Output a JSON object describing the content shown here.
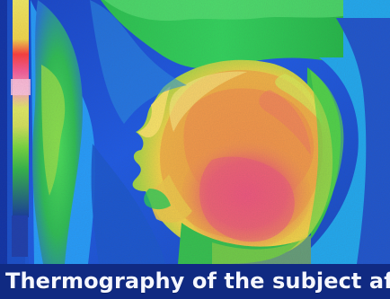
{
  "caption": {
    "text": "Thermography of the subject after"
  },
  "image": {
    "subject": "thermal image of a face in profile",
    "colors": {
      "background_blue": "#1b4fcf",
      "deep_blue": "#0c2f95",
      "cool_blue": "#2aa2ff",
      "green": "#29d44d",
      "yellow": "#f2d73d",
      "orange": "#f39d40",
      "pink": "#f25d88",
      "red": "#ef4442",
      "scale_red": "#ff3b3b",
      "scale_pink": "#ff5a9c",
      "scale_yellow": "#e6ef58",
      "scale_green": "#53db3b"
    }
  }
}
